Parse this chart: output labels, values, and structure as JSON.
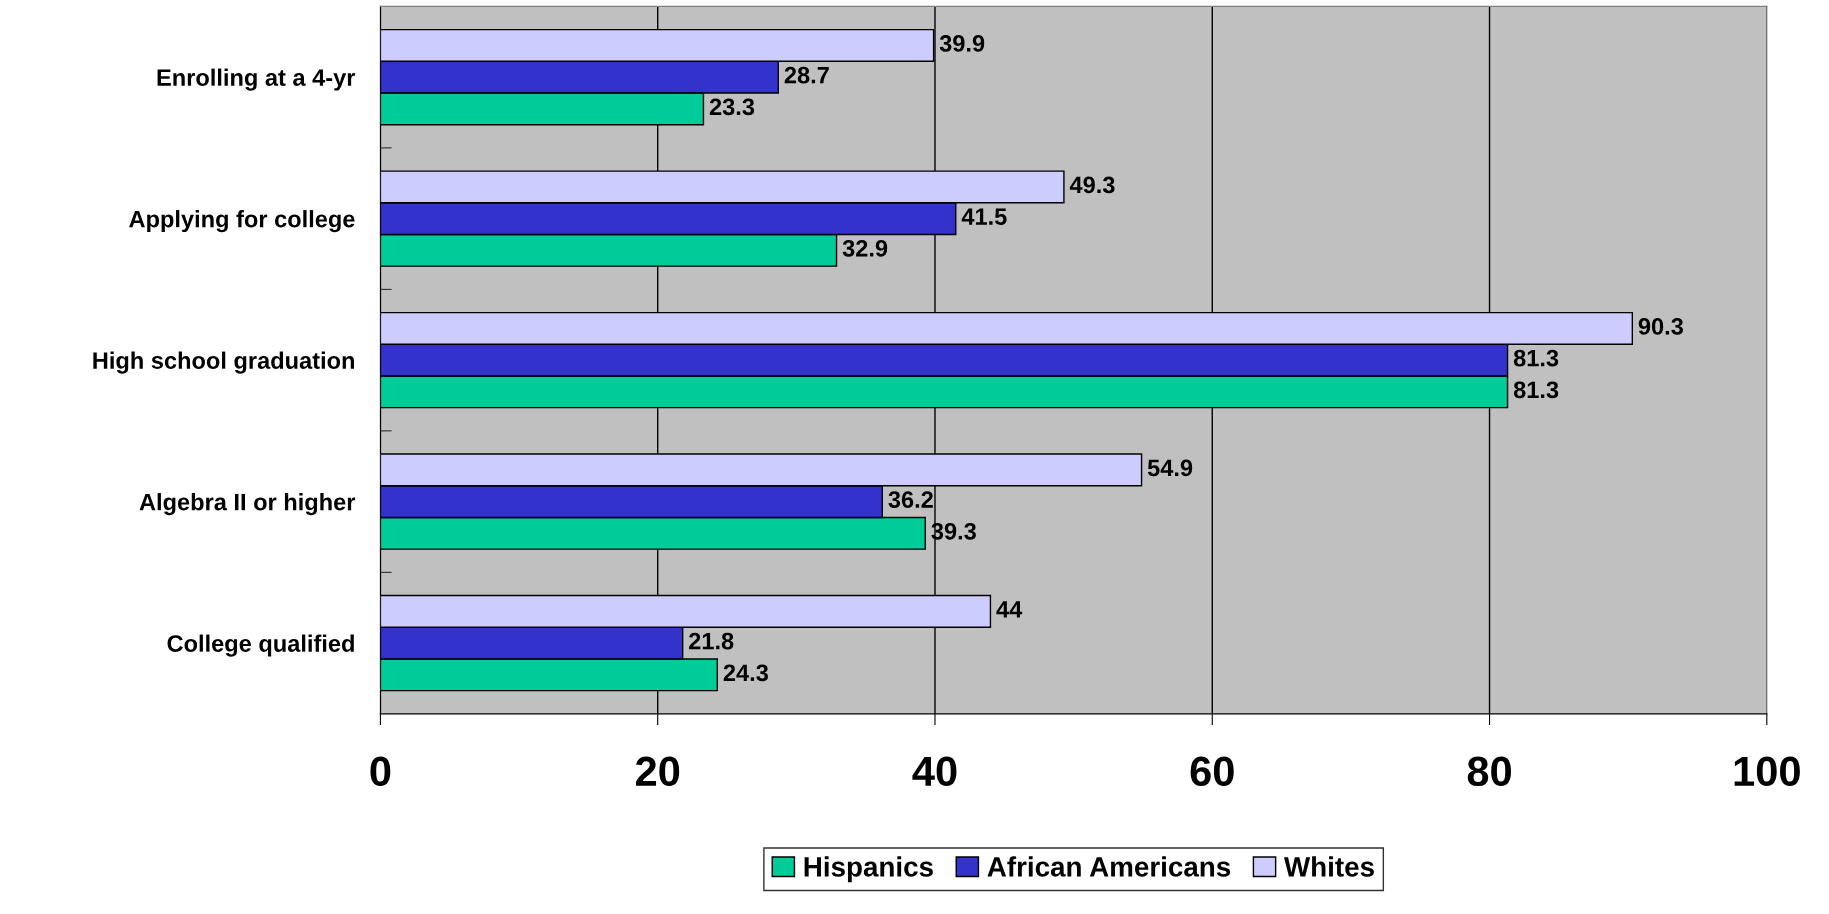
{
  "chart_data": {
    "type": "bar",
    "orientation": "horizontal",
    "categories": [
      "Enrolling at a 4-yr",
      "Applying for college",
      "High school graduation",
      "Algebra II or higher",
      "College qualified"
    ],
    "series": [
      {
        "name": "Hispanics",
        "color": "#00cc99",
        "values": [
          23.3,
          32.9,
          81.3,
          39.3,
          24.3
        ]
      },
      {
        "name": "African Americans",
        "color": "#3333cc",
        "values": [
          28.7,
          41.5,
          81.3,
          36.2,
          21.8
        ]
      },
      {
        "name": "Whites",
        "color": "#ccccff",
        "values": [
          39.9,
          49.3,
          90.3,
          54.9,
          44
        ]
      }
    ],
    "xlim": [
      0,
      100
    ],
    "xticks": [
      0,
      20,
      40,
      60,
      80,
      100
    ],
    "data_labels": true,
    "grid": "x",
    "legend": "bottom"
  }
}
